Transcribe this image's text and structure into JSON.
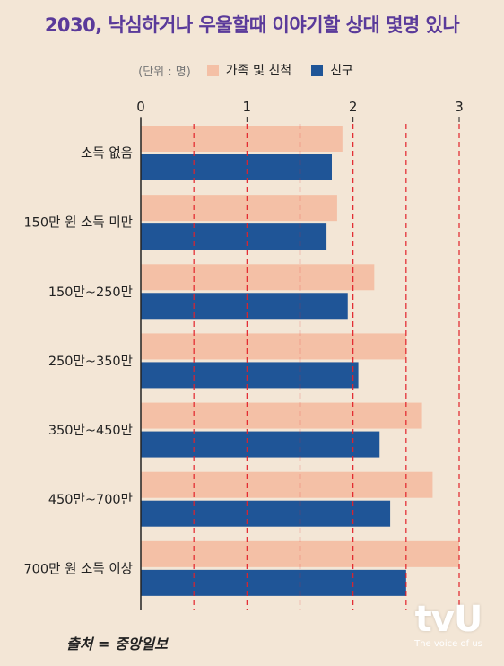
{
  "title": "2030, 낙심하거나 우울할때 이야기할 상대 몇명 있나",
  "legend": {
    "unit": "(단위 : 명)",
    "items": [
      {
        "label": "가족 및 친척",
        "color": "#f4c0a6"
      },
      {
        "label": "친구",
        "color": "#1f5597"
      }
    ]
  },
  "source": "출처 = 중앙일보",
  "logo": {
    "mark": "tvU",
    "tagline": "The voice of us"
  },
  "chart_data": {
    "type": "bar",
    "orientation": "horizontal",
    "categories": [
      "소득 없음",
      "150만 원 소득 미만",
      "150만~250만",
      "250만~350만",
      "350만~450만",
      "450만~700만",
      "700만 원 소득 이상"
    ],
    "series": [
      {
        "name": "가족 및 친척",
        "color": "#f4c0a6",
        "values": [
          1.9,
          1.85,
          2.2,
          2.5,
          2.65,
          2.75,
          3.0
        ]
      },
      {
        "name": "친구",
        "color": "#1f5597",
        "values": [
          1.8,
          1.75,
          1.95,
          2.05,
          2.25,
          2.35,
          2.5
        ]
      }
    ],
    "xlim": [
      0,
      3
    ],
    "xticks": [
      0,
      1,
      2,
      3
    ],
    "gridlines": [
      0.5,
      1,
      1.5,
      2,
      2.5,
      3
    ],
    "grid_color": "#e2222a",
    "legend_position": "top"
  }
}
